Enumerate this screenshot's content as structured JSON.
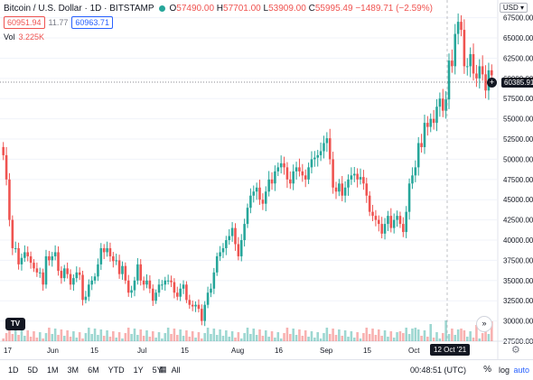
{
  "header": {
    "title": "Bitcoin / U.S. Dollar · 1D · BITSTAMP",
    "o_label": "O",
    "o_value": "57490.00",
    "h_label": "H",
    "h_value": "57701.00",
    "l_label": "L",
    "l_value": "53909.00",
    "c_label": "C",
    "c_value": "55995.49",
    "change": "−1489.71 (−2.59%)",
    "sell_price": "60951.94",
    "spread": "11.77",
    "buy_price": "60963.71",
    "vol_label": "Vol",
    "vol_value": "3.225K"
  },
  "price_axis": {
    "currency": "USD ▾",
    "ticks": [
      "67500.00",
      "65000.00",
      "62500.00",
      "60000.00",
      "57500.00",
      "55000.00",
      "52500.00",
      "50000.00",
      "47500.00",
      "45000.00",
      "42500.00",
      "40000.00",
      "37500.00",
      "35000.00",
      "32500.00",
      "30000.00",
      "27500.00"
    ],
    "current_price": "60385.91"
  },
  "time_axis": {
    "labels": [
      "17",
      "Jun",
      "15",
      "Jul",
      "15",
      "Aug",
      "16",
      "Sep",
      "15",
      "Oct",
      "18"
    ],
    "crosshair_date": "12 Oct '21"
  },
  "bottom_bar": {
    "ranges": [
      "1D",
      "5D",
      "1M",
      "3M",
      "6M",
      "YTD",
      "1Y",
      "5Y",
      "All"
    ],
    "clock": "00:48:51 (UTC)",
    "percent": "%",
    "log": "log",
    "auto": "auto"
  },
  "logo_text": "TV",
  "colors": {
    "up": "#26a69a",
    "down": "#ef5350",
    "accent": "#2962ff"
  },
  "chart_data": {
    "type": "candlestick",
    "ylim": [
      27500,
      68800
    ],
    "closes": [
      50500,
      47500,
      42500,
      39000,
      39000,
      37000,
      37800,
      38500,
      38000,
      37200,
      36500,
      36000,
      36000,
      34500,
      38000,
      37500,
      38000,
      38500,
      36200,
      35300,
      36500,
      35800,
      34500,
      35300,
      36000,
      35700,
      32600,
      33000,
      34500,
      35000,
      35500,
      37000,
      39000,
      38500,
      39000,
      38000,
      37400,
      37500,
      35800,
      36800,
      35000,
      33500,
      33800,
      35000,
      37000,
      35000,
      34500,
      35000,
      34000,
      32500,
      33500,
      34500,
      34500,
      35000,
      35000,
      34800,
      33500,
      33000,
      34000,
      34500,
      32600,
      32000,
      31800,
      32000,
      31500,
      30000,
      32000,
      33500,
      34000,
      36000,
      38000,
      38500,
      39000,
      40000,
      40500,
      41500,
      39500,
      38000,
      40000,
      42000,
      44000,
      45500,
      46000,
      46500,
      45000,
      44500,
      46000,
      47500,
      47000,
      48500,
      49000,
      49500,
      49000,
      47500,
      47000,
      48500,
      49000,
      48500,
      48000,
      47500,
      49000,
      50000,
      50200,
      50500,
      51000,
      52000,
      52600,
      50000,
      46500,
      46000,
      47000,
      45500,
      46500,
      47500,
      48000,
      48200,
      47500,
      47800,
      47000,
      45500,
      43500,
      43000,
      42500,
      42000,
      40800,
      42000,
      43000,
      41500,
      42500,
      43000,
      42000,
      41000,
      43500,
      47000,
      48000,
      49000,
      52000,
      51500,
      54500,
      54000,
      55000,
      54500,
      56500,
      57500,
      56000,
      57400,
      62200,
      61500,
      65500,
      67000,
      66000,
      61500,
      61500,
      63000,
      60600,
      60000,
      61500,
      60500,
      58500,
      61000,
      60385
    ]
  }
}
